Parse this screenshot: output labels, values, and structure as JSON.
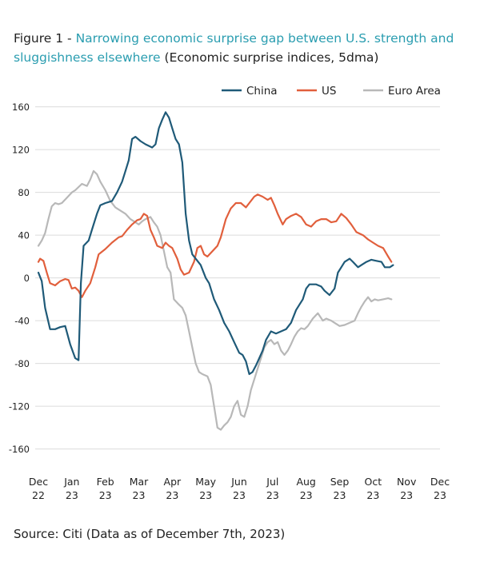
{
  "figure": {
    "label": "Figure 1 -",
    "title": "Narrowing economic surprise gap between U.S. strength and sluggishness elsewhere",
    "subtitle": "(Economic surprise indices, 5dma)",
    "source": "Source: Citi (Data as of December 7th, 2023)"
  },
  "chart_data": {
    "type": "line",
    "ylim": [
      -170,
      165
    ],
    "yticks": [
      160,
      120,
      80,
      40,
      0,
      -40,
      -80,
      -120,
      -160
    ],
    "grid": true,
    "legend_position": "top-right",
    "x_tick_labels": [
      {
        "x": 0,
        "line1": "Dec",
        "line2": "22"
      },
      {
        "x": 1,
        "line1": "Jan",
        "line2": "23"
      },
      {
        "x": 2,
        "line1": "Feb",
        "line2": "23"
      },
      {
        "x": 3,
        "line1": "Mar",
        "line2": "23"
      },
      {
        "x": 4,
        "line1": "Apr",
        "line2": "23"
      },
      {
        "x": 5,
        "line1": "May",
        "line2": "23"
      },
      {
        "x": 6,
        "line1": "Jun",
        "line2": "23"
      },
      {
        "x": 7,
        "line1": "Jul",
        "line2": "23"
      },
      {
        "x": 8,
        "line1": "Aug",
        "line2": "23"
      },
      {
        "x": 9,
        "line1": "Sep",
        "line2": "23"
      },
      {
        "x": 10,
        "line1": "Oct",
        "line2": "23"
      },
      {
        "x": 11,
        "line1": "Nov",
        "line2": "23"
      },
      {
        "x": 12,
        "line1": "Dec",
        "line2": "23"
      }
    ],
    "series": [
      {
        "name": "China",
        "color": "#1f5a78",
        "points": [
          [
            0.0,
            5
          ],
          [
            0.1,
            -3
          ],
          [
            0.2,
            -28
          ],
          [
            0.35,
            -48
          ],
          [
            0.5,
            -48
          ],
          [
            0.65,
            -46
          ],
          [
            0.8,
            -45
          ],
          [
            0.95,
            -62
          ],
          [
            1.1,
            -75
          ],
          [
            1.2,
            -77
          ],
          [
            1.27,
            -5
          ],
          [
            1.35,
            30
          ],
          [
            1.5,
            35
          ],
          [
            1.6,
            45
          ],
          [
            1.75,
            60
          ],
          [
            1.85,
            68
          ],
          [
            2.0,
            70
          ],
          [
            2.2,
            72
          ],
          [
            2.35,
            80
          ],
          [
            2.5,
            90
          ],
          [
            2.6,
            100
          ],
          [
            2.7,
            110
          ],
          [
            2.8,
            130
          ],
          [
            2.9,
            132
          ],
          [
            3.05,
            128
          ],
          [
            3.2,
            125
          ],
          [
            3.4,
            122
          ],
          [
            3.5,
            125
          ],
          [
            3.6,
            140
          ],
          [
            3.7,
            148
          ],
          [
            3.8,
            155
          ],
          [
            3.9,
            150
          ],
          [
            4.0,
            140
          ],
          [
            4.1,
            130
          ],
          [
            4.2,
            125
          ],
          [
            4.3,
            108
          ],
          [
            4.4,
            60
          ],
          [
            4.5,
            35
          ],
          [
            4.6,
            22
          ],
          [
            4.7,
            18
          ],
          [
            4.85,
            12
          ],
          [
            5.0,
            0
          ],
          [
            5.1,
            -5
          ],
          [
            5.25,
            -20
          ],
          [
            5.4,
            -30
          ],
          [
            5.55,
            -42
          ],
          [
            5.7,
            -50
          ],
          [
            5.85,
            -60
          ],
          [
            6.0,
            -70
          ],
          [
            6.1,
            -72
          ],
          [
            6.2,
            -78
          ],
          [
            6.3,
            -90
          ],
          [
            6.4,
            -88
          ],
          [
            6.5,
            -82
          ],
          [
            6.6,
            -75
          ],
          [
            6.7,
            -68
          ],
          [
            6.8,
            -58
          ],
          [
            6.95,
            -50
          ],
          [
            7.1,
            -52
          ],
          [
            7.25,
            -50
          ],
          [
            7.4,
            -48
          ],
          [
            7.55,
            -42
          ],
          [
            7.7,
            -30
          ],
          [
            7.8,
            -25
          ],
          [
            7.9,
            -20
          ],
          [
            8.0,
            -10
          ],
          [
            8.1,
            -6
          ],
          [
            8.3,
            -6
          ],
          [
            8.45,
            -8
          ],
          [
            8.55,
            -12
          ],
          [
            8.7,
            -16
          ],
          [
            8.85,
            -10
          ],
          [
            8.95,
            5
          ],
          [
            9.05,
            10
          ],
          [
            9.15,
            15
          ],
          [
            9.3,
            18
          ],
          [
            9.4,
            15
          ],
          [
            9.55,
            10
          ],
          [
            9.65,
            12
          ],
          [
            9.8,
            15
          ],
          [
            9.95,
            17
          ],
          [
            10.1,
            16
          ],
          [
            10.25,
            15
          ],
          [
            10.35,
            10
          ],
          [
            10.5,
            10
          ],
          [
            10.6,
            12
          ]
        ]
      },
      {
        "name": "US",
        "color": "#e15f3c",
        "points": [
          [
            0.0,
            15
          ],
          [
            0.05,
            18
          ],
          [
            0.15,
            16
          ],
          [
            0.25,
            5
          ],
          [
            0.35,
            -5
          ],
          [
            0.5,
            -7
          ],
          [
            0.65,
            -3
          ],
          [
            0.8,
            -1
          ],
          [
            0.9,
            -2
          ],
          [
            1.0,
            -10
          ],
          [
            1.1,
            -9
          ],
          [
            1.2,
            -12
          ],
          [
            1.3,
            -18
          ],
          [
            1.4,
            -12
          ],
          [
            1.55,
            -5
          ],
          [
            1.7,
            10
          ],
          [
            1.8,
            22
          ],
          [
            2.0,
            27
          ],
          [
            2.2,
            33
          ],
          [
            2.4,
            38
          ],
          [
            2.5,
            39
          ],
          [
            2.65,
            45
          ],
          [
            2.8,
            50
          ],
          [
            2.95,
            54
          ],
          [
            3.05,
            55
          ],
          [
            3.15,
            60
          ],
          [
            3.25,
            58
          ],
          [
            3.35,
            45
          ],
          [
            3.45,
            38
          ],
          [
            3.55,
            30
          ],
          [
            3.7,
            28
          ],
          [
            3.8,
            33
          ],
          [
            3.9,
            30
          ],
          [
            4.0,
            28
          ],
          [
            4.15,
            18
          ],
          [
            4.25,
            8
          ],
          [
            4.35,
            3
          ],
          [
            4.5,
            5
          ],
          [
            4.65,
            15
          ],
          [
            4.75,
            28
          ],
          [
            4.85,
            30
          ],
          [
            4.95,
            22
          ],
          [
            5.05,
            20
          ],
          [
            5.2,
            25
          ],
          [
            5.35,
            30
          ],
          [
            5.45,
            38
          ],
          [
            5.6,
            55
          ],
          [
            5.75,
            65
          ],
          [
            5.9,
            70
          ],
          [
            6.05,
            70
          ],
          [
            6.2,
            66
          ],
          [
            6.3,
            70
          ],
          [
            6.45,
            76
          ],
          [
            6.55,
            78
          ],
          [
            6.7,
            76
          ],
          [
            6.85,
            73
          ],
          [
            6.95,
            75
          ],
          [
            7.05,
            68
          ],
          [
            7.15,
            60
          ],
          [
            7.3,
            50
          ],
          [
            7.4,
            55
          ],
          [
            7.55,
            58
          ],
          [
            7.7,
            60
          ],
          [
            7.85,
            57
          ],
          [
            8.0,
            50
          ],
          [
            8.15,
            48
          ],
          [
            8.3,
            53
          ],
          [
            8.45,
            55
          ],
          [
            8.6,
            55
          ],
          [
            8.75,
            52
          ],
          [
            8.9,
            53
          ],
          [
            9.05,
            60
          ],
          [
            9.2,
            56
          ],
          [
            9.35,
            50
          ],
          [
            9.5,
            43
          ],
          [
            9.7,
            40
          ],
          [
            9.85,
            36
          ],
          [
            10.0,
            33
          ],
          [
            10.15,
            30
          ],
          [
            10.3,
            28
          ],
          [
            10.45,
            20
          ],
          [
            10.55,
            15
          ]
        ]
      },
      {
        "name": "Euro Area",
        "color": "#b8b8b8",
        "points": [
          [
            0.0,
            30
          ],
          [
            0.1,
            35
          ],
          [
            0.2,
            42
          ],
          [
            0.3,
            55
          ],
          [
            0.4,
            67
          ],
          [
            0.5,
            70
          ],
          [
            0.6,
            69
          ],
          [
            0.7,
            70
          ],
          [
            0.85,
            75
          ],
          [
            1.0,
            80
          ],
          [
            1.1,
            82
          ],
          [
            1.2,
            85
          ],
          [
            1.3,
            88
          ],
          [
            1.45,
            86
          ],
          [
            1.55,
            92
          ],
          [
            1.65,
            100
          ],
          [
            1.75,
            97
          ],
          [
            1.85,
            90
          ],
          [
            2.0,
            82
          ],
          [
            2.15,
            72
          ],
          [
            2.3,
            66
          ],
          [
            2.45,
            63
          ],
          [
            2.6,
            60
          ],
          [
            2.75,
            55
          ],
          [
            2.9,
            52
          ],
          [
            3.0,
            50
          ],
          [
            3.1,
            53
          ],
          [
            3.2,
            55
          ],
          [
            3.35,
            57
          ],
          [
            3.45,
            52
          ],
          [
            3.55,
            48
          ],
          [
            3.65,
            40
          ],
          [
            3.75,
            25
          ],
          [
            3.85,
            10
          ],
          [
            3.95,
            5
          ],
          [
            4.05,
            -20
          ],
          [
            4.2,
            -25
          ],
          [
            4.3,
            -28
          ],
          [
            4.4,
            -35
          ],
          [
            4.5,
            -50
          ],
          [
            4.6,
            -65
          ],
          [
            4.7,
            -80
          ],
          [
            4.8,
            -88
          ],
          [
            4.9,
            -90
          ],
          [
            5.05,
            -92
          ],
          [
            5.15,
            -100
          ],
          [
            5.25,
            -120
          ],
          [
            5.35,
            -140
          ],
          [
            5.45,
            -142
          ],
          [
            5.55,
            -138
          ],
          [
            5.65,
            -135
          ],
          [
            5.75,
            -130
          ],
          [
            5.85,
            -120
          ],
          [
            5.95,
            -115
          ],
          [
            6.05,
            -128
          ],
          [
            6.15,
            -130
          ],
          [
            6.25,
            -120
          ],
          [
            6.35,
            -105
          ],
          [
            6.45,
            -95
          ],
          [
            6.55,
            -85
          ],
          [
            6.65,
            -75
          ],
          [
            6.75,
            -65
          ],
          [
            6.85,
            -60
          ],
          [
            6.95,
            -58
          ],
          [
            7.05,
            -62
          ],
          [
            7.15,
            -60
          ],
          [
            7.25,
            -68
          ],
          [
            7.35,
            -72
          ],
          [
            7.45,
            -68
          ],
          [
            7.55,
            -62
          ],
          [
            7.65,
            -55
          ],
          [
            7.75,
            -50
          ],
          [
            7.85,
            -47
          ],
          [
            7.95,
            -48
          ],
          [
            8.05,
            -45
          ],
          [
            8.2,
            -38
          ],
          [
            8.35,
            -33
          ],
          [
            8.5,
            -40
          ],
          [
            8.6,
            -38
          ],
          [
            8.75,
            -40
          ],
          [
            8.85,
            -42
          ],
          [
            9.0,
            -45
          ],
          [
            9.15,
            -44
          ],
          [
            9.3,
            -42
          ],
          [
            9.45,
            -40
          ],
          [
            9.55,
            -33
          ],
          [
            9.65,
            -27
          ],
          [
            9.75,
            -22
          ],
          [
            9.85,
            -18
          ],
          [
            9.95,
            -22
          ],
          [
            10.05,
            -20
          ],
          [
            10.15,
            -21
          ],
          [
            10.3,
            -20
          ],
          [
            10.45,
            -19
          ],
          [
            10.55,
            -20
          ]
        ]
      }
    ]
  }
}
